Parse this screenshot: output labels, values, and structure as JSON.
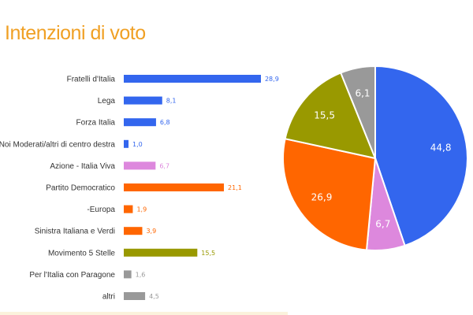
{
  "chart_data": [
    {
      "type": "bar",
      "orientation": "horizontal",
      "title": "Intenzioni di voto",
      "categories": [
        "Fratelli d'Italia",
        "Lega",
        "Forza Italia",
        "Noi Moderati/altri di centro destra",
        "Azione - Italia Viva",
        "Partito Democratico",
        "-Europa",
        "Sinistra Italiana e Verdi",
        "Movimento 5 Stelle",
        "Per l'Italia con Paragone",
        "altri"
      ],
      "values": [
        28.9,
        8.1,
        6.8,
        1.0,
        6.7,
        21.1,
        1.9,
        3.9,
        15.5,
        1.6,
        4.5
      ],
      "value_labels": [
        "28,9",
        "8,1",
        "6,8",
        "1,0",
        "6,7",
        "21,1",
        "1,9",
        "3,9",
        "15,5",
        "1,6",
        "4,5"
      ],
      "colors": [
        "#3366ee",
        "#3366ee",
        "#3366ee",
        "#3366ee",
        "#dd88dd",
        "#ff6600",
        "#ff6600",
        "#ff6600",
        "#999900",
        "#999999",
        "#999999"
      ]
    },
    {
      "type": "pie",
      "values": [
        44.8,
        6.7,
        26.9,
        15.5,
        6.1
      ],
      "value_labels": [
        "44,8",
        "6,7",
        "26,9",
        "15,5",
        "6,1"
      ],
      "colors": [
        "#3366ee",
        "#dd88dd",
        "#ff6600",
        "#999900",
        "#999999"
      ]
    }
  ]
}
